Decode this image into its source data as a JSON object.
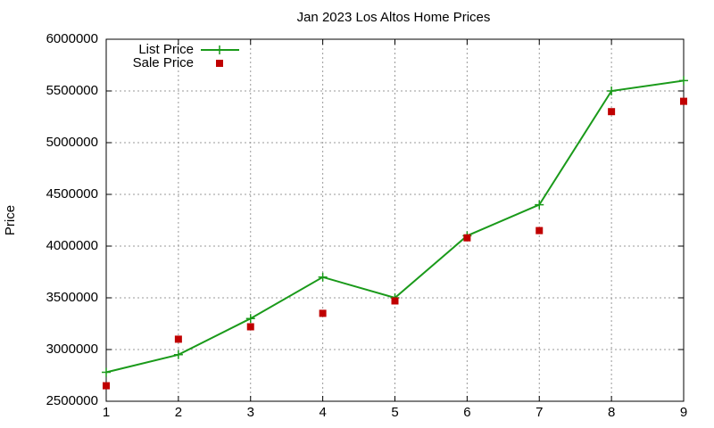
{
  "chart_data": {
    "type": "line",
    "title": "Jan 2023 Los Altos Home Prices",
    "y_label": "Price",
    "x": [
      1,
      2,
      3,
      4,
      5,
      6,
      7,
      8,
      9
    ],
    "series": [
      {
        "name": "List Price",
        "color": "#1a9a1a",
        "style": "line",
        "values": [
          2780000,
          2950000,
          3300000,
          3700000,
          3500000,
          4100000,
          4400000,
          5500000,
          5600000
        ]
      },
      {
        "name": "Sale Price",
        "color": "#c00000",
        "style": "points",
        "values": [
          2650000,
          3100000,
          3220000,
          3350000,
          3470000,
          4080000,
          4150000,
          5300000,
          5400000
        ]
      }
    ],
    "xlim": [
      1,
      9
    ],
    "xticks": [
      1,
      2,
      3,
      4,
      5,
      6,
      7,
      8,
      9
    ],
    "ylim": [
      2500000,
      6000000
    ],
    "yticks": [
      2500000,
      3000000,
      3500000,
      4000000,
      4500000,
      5000000,
      5500000,
      6000000
    ],
    "grid": true,
    "legend": "top-left"
  }
}
